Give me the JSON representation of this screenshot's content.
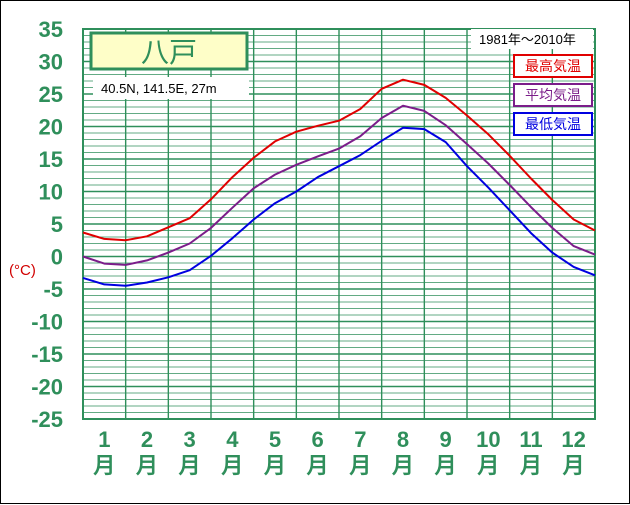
{
  "chart_data": {
    "type": "line",
    "title": "八戸",
    "subtitle": "40.5N,  141.5E,  27m",
    "period": "1981年〜2010年",
    "ylabel": "(°C)",
    "ylim": [
      -25,
      35
    ],
    "yticks": [
      35,
      30,
      25,
      20,
      15,
      10,
      5,
      0,
      -5,
      -10,
      -15,
      -20,
      -25
    ],
    "xlim": [
      0,
      12
    ],
    "categories": [
      "1",
      "2",
      "3",
      "4",
      "5",
      "6",
      "7",
      "8",
      "9",
      "10",
      "11",
      "12"
    ],
    "month_suffix": "月",
    "grid": true,
    "legend_position": "top-right",
    "series": [
      {
        "name": "最高気温",
        "color": "#e00000",
        "x": [
          0,
          0.5,
          1,
          1.5,
          2,
          2.5,
          3,
          3.5,
          4,
          4.5,
          5,
          5.5,
          6,
          6.5,
          7,
          7.5,
          8,
          8.5,
          9,
          9.5,
          10,
          10.5,
          11,
          11.5,
          12
        ],
        "values": [
          3.7,
          2.7,
          2.5,
          3.1,
          4.5,
          5.9,
          8.8,
          12.2,
          15.2,
          17.7,
          19.2,
          20.1,
          20.9,
          22.7,
          25.8,
          27.2,
          26.4,
          24.4,
          21.7,
          18.8,
          15.5,
          12.0,
          8.7,
          5.7,
          4.0
        ]
      },
      {
        "name": "平均気温",
        "color": "#7b1d8a",
        "x": [
          0,
          0.5,
          1,
          1.5,
          2,
          2.5,
          3,
          3.5,
          4,
          4.5,
          5,
          5.5,
          6,
          6.5,
          7,
          7.5,
          8,
          8.5,
          9,
          9.5,
          10,
          10.5,
          11,
          11.5,
          12
        ],
        "values": [
          0.0,
          -1.1,
          -1.3,
          -0.6,
          0.6,
          2.0,
          4.4,
          7.5,
          10.5,
          12.6,
          14.1,
          15.4,
          16.6,
          18.5,
          21.3,
          23.2,
          22.4,
          20.2,
          17.3,
          14.3,
          11.0,
          7.6,
          4.4,
          1.6,
          0.3
        ]
      },
      {
        "name": "最低気温",
        "color": "#0000e0",
        "x": [
          0,
          0.5,
          1,
          1.5,
          2,
          2.5,
          3,
          3.5,
          4,
          4.5,
          5,
          5.5,
          6,
          6.5,
          7,
          7.5,
          8,
          8.5,
          9,
          9.5,
          10,
          10.5,
          11,
          11.5,
          12
        ],
        "values": [
          -3.3,
          -4.3,
          -4.5,
          -4.0,
          -3.2,
          -2.1,
          0.1,
          2.8,
          5.7,
          8.2,
          10.0,
          12.2,
          13.9,
          15.6,
          17.8,
          19.8,
          19.6,
          17.6,
          13.9,
          10.6,
          7.1,
          3.6,
          0.6,
          -1.6,
          -2.9
        ]
      }
    ]
  }
}
